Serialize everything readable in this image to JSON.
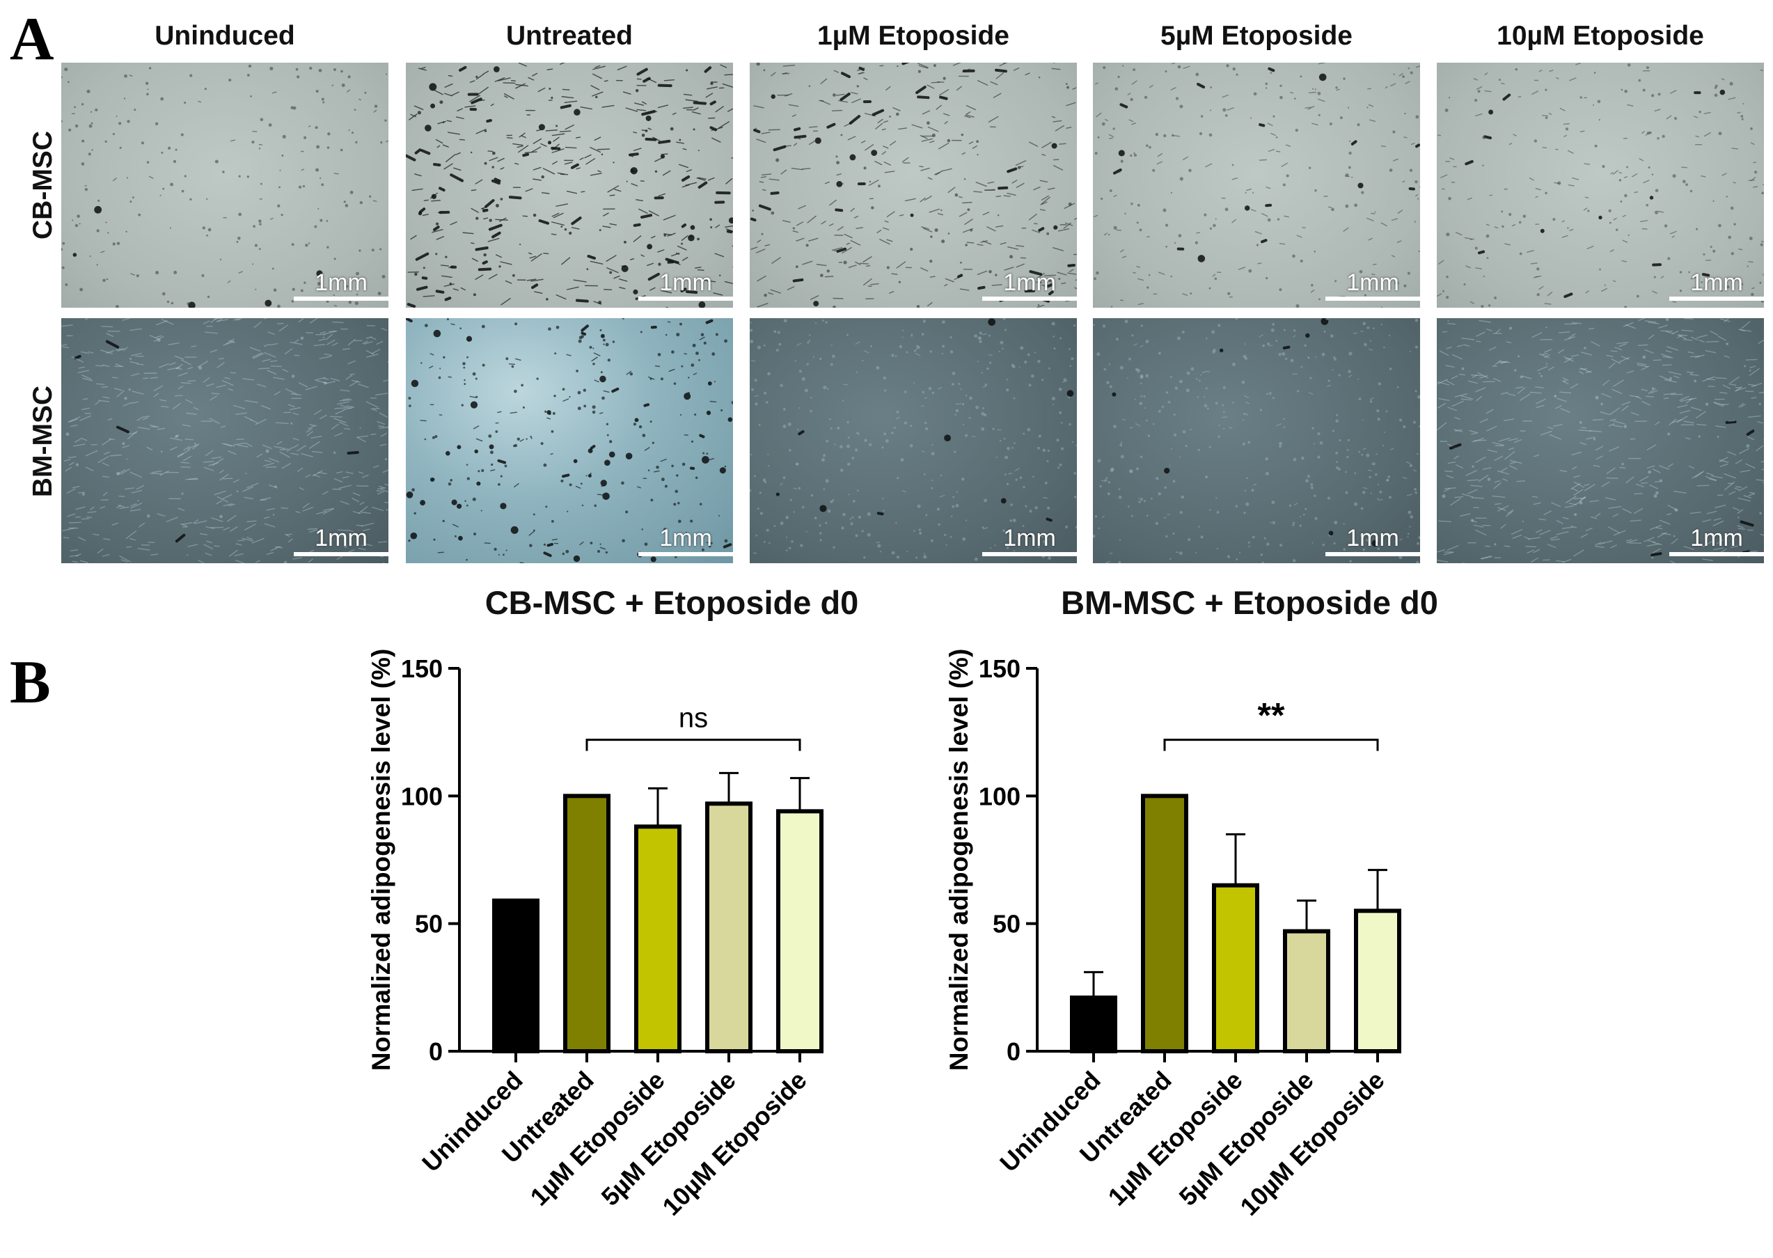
{
  "panel_a": {
    "letter": "A",
    "column_headers": [
      "Uninduced",
      "Untreated",
      "1µM Etoposide",
      "5µM Etoposide",
      "10µM Etoposide"
    ],
    "row_headers": [
      "CB-MSC",
      "BM-MSC"
    ],
    "scale_bar_label": "1mm"
  },
  "panel_b": {
    "letter": "B"
  },
  "chart_data": [
    {
      "type": "bar",
      "title": "CB-MSC + Etoposide d0",
      "ylabel": "Normalized adipogenesis level (%)",
      "xlabel": "",
      "ylim": [
        0,
        150
      ],
      "yticks": [
        "0",
        "50",
        "100",
        "150"
      ],
      "categories": [
        "Uninduced",
        "Untreated",
        "1µM Etoposide",
        "5µM Etoposide",
        "10µM Etoposide"
      ],
      "values": [
        59,
        100,
        88,
        97,
        94
      ],
      "errors": [
        0,
        0,
        15,
        12,
        13
      ],
      "colors": [
        "#000000",
        "#808000",
        "#c3c400",
        "#d9d89c",
        "#f0f8c8"
      ],
      "significance": {
        "from": 1,
        "to": 4,
        "label": "ns"
      }
    },
    {
      "type": "bar",
      "title": "BM-MSC + Etoposide d0",
      "ylabel": "Normalized adipogenesis level (%)",
      "xlabel": "",
      "ylim": [
        0,
        150
      ],
      "yticks": [
        "0",
        "50",
        "100",
        "150"
      ],
      "categories": [
        "Uninduced",
        "Untreated",
        "1µM Etoposide",
        "5µM Etoposide",
        "10µM Etoposide"
      ],
      "values": [
        21,
        100,
        65,
        47,
        55
      ],
      "errors": [
        10,
        0,
        20,
        12,
        16
      ],
      "colors": [
        "#000000",
        "#808000",
        "#c3c400",
        "#d9d89c",
        "#f0f8c8"
      ],
      "significance": {
        "from": 1,
        "to": 4,
        "label": "**"
      }
    }
  ]
}
